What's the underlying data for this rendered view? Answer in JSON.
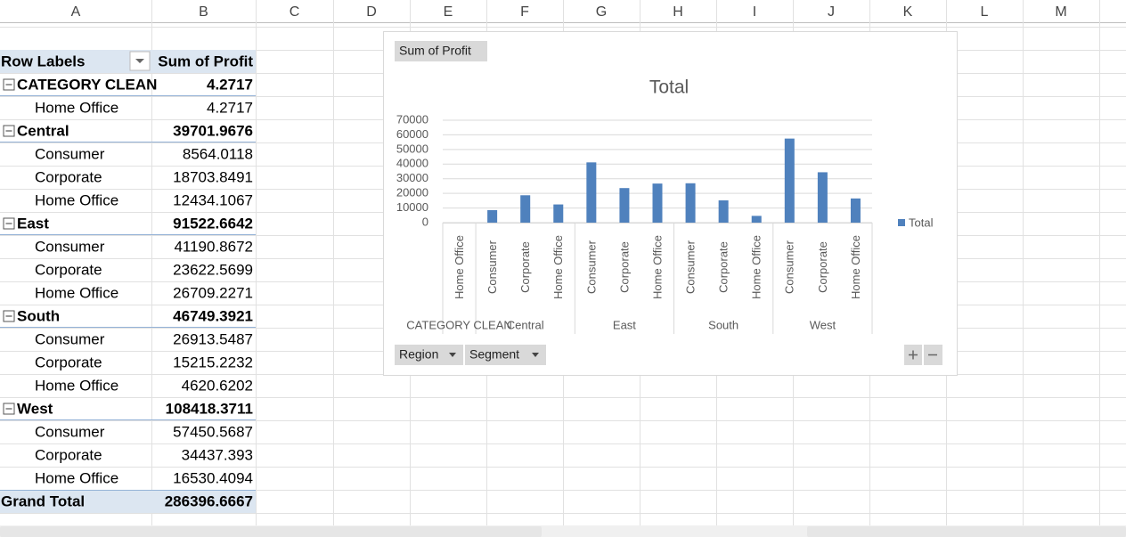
{
  "columns": [
    "A",
    "B",
    "C",
    "D",
    "E",
    "F",
    "G",
    "H",
    "I",
    "J",
    "K",
    "L",
    "M"
  ],
  "pivot": {
    "header": [
      "Row Labels",
      "Sum of Profit"
    ],
    "rows": [
      {
        "label": "CATEGORY CLEAN",
        "value": 4.2717,
        "level": 0
      },
      {
        "label": "Home Office",
        "value": 4.2717,
        "level": 1
      },
      {
        "label": "Central",
        "value": 39701.9676,
        "level": 0
      },
      {
        "label": "Consumer",
        "value": 8564.0118,
        "level": 1
      },
      {
        "label": "Corporate",
        "value": 18703.8491,
        "level": 1
      },
      {
        "label": "Home Office",
        "value": 12434.1067,
        "level": 1
      },
      {
        "label": "East",
        "value": 91522.6642,
        "level": 0
      },
      {
        "label": "Consumer",
        "value": 41190.8672,
        "level": 1
      },
      {
        "label": "Corporate",
        "value": 23622.5699,
        "level": 1
      },
      {
        "label": "Home Office",
        "value": 26709.2271,
        "level": 1
      },
      {
        "label": "South",
        "value": 46749.3921,
        "level": 0
      },
      {
        "label": "Consumer",
        "value": 26913.5487,
        "level": 1
      },
      {
        "label": "Corporate",
        "value": 15215.2232,
        "level": 1
      },
      {
        "label": "Home Office",
        "value": 4620.6202,
        "level": 1
      },
      {
        "label": "West",
        "value": 108418.3711,
        "level": 0
      },
      {
        "label": "Consumer",
        "value": 57450.5687,
        "level": 1
      },
      {
        "label": "Corporate",
        "value": 34437.393,
        "level": 1
      },
      {
        "label": "Home Office",
        "value": 16530.4094,
        "level": 1
      }
    ],
    "grand_total": {
      "label": "Grand Total",
      "value": 286396.6667
    }
  },
  "chart_data": {
    "type": "bar",
    "button": "Sum of Profit",
    "title": "Total",
    "categories": [
      "Home Office",
      "Consumer",
      "Corporate",
      "Home Office",
      "Consumer",
      "Corporate",
      "Home Office",
      "Consumer",
      "Corporate",
      "Home Office",
      "Consumer",
      "Corporate",
      "Home Office"
    ],
    "groups": [
      {
        "label": "CATEGORY CLEAN",
        "span": 1
      },
      {
        "label": "Central",
        "span": 3
      },
      {
        "label": "East",
        "span": 3
      },
      {
        "label": "South",
        "span": 3
      },
      {
        "label": "West",
        "span": 3
      }
    ],
    "series": [
      {
        "name": "Total",
        "color": "#4f81bd",
        "values": [
          4.2717,
          8564.0118,
          18703.8491,
          12434.1067,
          41190.8672,
          23622.5699,
          26709.2271,
          26913.5487,
          15215.2232,
          4620.6202,
          57450.5687,
          34437.393,
          16530.4094
        ]
      }
    ],
    "ylim": [
      0,
      70000
    ],
    "yticks": [
      0,
      10000,
      20000,
      30000,
      40000,
      50000,
      60000,
      70000
    ],
    "grid": true,
    "legend": "right",
    "filters": [
      "Region",
      "Segment"
    ]
  }
}
